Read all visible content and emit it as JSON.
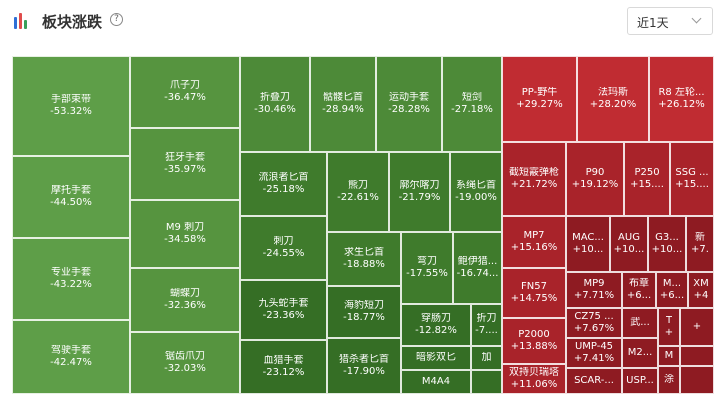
{
  "header": {
    "title": "板块涨跌",
    "help_icon": "?",
    "time_range": "近1天"
  },
  "cells": [
    {
      "name": "手部束带",
      "pct": "-53.32%"
    },
    {
      "name": "摩托手套",
      "pct": "-44.50%"
    },
    {
      "name": "专业手套",
      "pct": "-43.22%"
    },
    {
      "name": "驾驶手套",
      "pct": "-42.47%"
    },
    {
      "name": "爪子刀",
      "pct": "-36.47%"
    },
    {
      "name": "狂牙手套",
      "pct": "-35.97%"
    },
    {
      "name": "M9 刺刀",
      "pct": "-34.58%"
    },
    {
      "name": "蝴蝶刀",
      "pct": "-32.36%"
    },
    {
      "name": "锯齿爪刀",
      "pct": "-32.03%"
    },
    {
      "name": "折叠刀",
      "pct": "-30.46%"
    },
    {
      "name": "骷髅匕首",
      "pct": "-28.94%"
    },
    {
      "name": "运动手套",
      "pct": "-28.28%"
    },
    {
      "name": "短剑",
      "pct": "-27.18%"
    },
    {
      "name": "流浪者匕首",
      "pct": "-25.18%"
    },
    {
      "name": "熊刀",
      "pct": "-22.61%"
    },
    {
      "name": "廓尔喀刀",
      "pct": "-21.79%"
    },
    {
      "name": "系绳匕首",
      "pct": "-19.00%"
    },
    {
      "name": "刺刀",
      "pct": "-24.55%"
    },
    {
      "name": "求生匕首",
      "pct": "-18.88%"
    },
    {
      "name": "弯刀",
      "pct": "-17.55%"
    },
    {
      "name": "鲍伊猎...",
      "pct": "-16.74..."
    },
    {
      "name": "九头蛇手套",
      "pct": "-23.36%"
    },
    {
      "name": "海豹短刀",
      "pct": "-18.77%"
    },
    {
      "name": "穿肠刀",
      "pct": "-12.82%"
    },
    {
      "name": "折刀",
      "pct": "-7...."
    },
    {
      "name": "血猎手套",
      "pct": "-23.12%"
    },
    {
      "name": "猎杀者匕首",
      "pct": "-17.90%"
    },
    {
      "name": "暗影双匕",
      "pct": ""
    },
    {
      "name": "加",
      "pct": ""
    },
    {
      "name": "M4A4",
      "pct": ""
    },
    {
      "name": "PP-野牛",
      "pct": "+29.27%"
    },
    {
      "name": "法玛斯",
      "pct": "+28.20%"
    },
    {
      "name": "R8 左轮...",
      "pct": "+26.12%"
    },
    {
      "name": "截短霰弹枪",
      "pct": "+21.72%"
    },
    {
      "name": "P90",
      "pct": "+19.12%"
    },
    {
      "name": "P250",
      "pct": "+15...."
    },
    {
      "name": "SSG ...",
      "pct": "+15...."
    },
    {
      "name": "MP7",
      "pct": "+15.16%"
    },
    {
      "name": "MAC...",
      "pct": "+10..."
    },
    {
      "name": "AUG",
      "pct": "+10..."
    },
    {
      "name": "G3...",
      "pct": "+10..."
    },
    {
      "name": "新",
      "pct": "+7."
    },
    {
      "name": "FN57",
      "pct": "+14.75%"
    },
    {
      "name": "MP9",
      "pct": "+7.71%"
    },
    {
      "name": "布章",
      "pct": "+6..."
    },
    {
      "name": "M...",
      "pct": "+6..."
    },
    {
      "name": "XM",
      "pct": "+4"
    },
    {
      "name": "P2000",
      "pct": "+13.88%"
    },
    {
      "name": "CZ75 ...",
      "pct": "+7.67%"
    },
    {
      "name": "武...",
      "pct": ""
    },
    {
      "name": "T",
      "pct": "+"
    },
    {
      "name": "+",
      "pct": ""
    },
    {
      "name": "UMP-45",
      "pct": "+7.41%"
    },
    {
      "name": "M2...",
      "pct": ""
    },
    {
      "name": "M",
      "pct": ""
    },
    {
      "name": "双持贝瑞塔",
      "pct": "+11.06%"
    },
    {
      "name": "SCAR-...",
      "pct": ""
    },
    {
      "name": "USP...",
      "pct": ""
    },
    {
      "name": "涂",
      "pct": ""
    }
  ],
  "colors": {
    "logo_bars": [
      "#2f6fd6",
      "#e04c4c",
      "#3aa05a"
    ]
  }
}
